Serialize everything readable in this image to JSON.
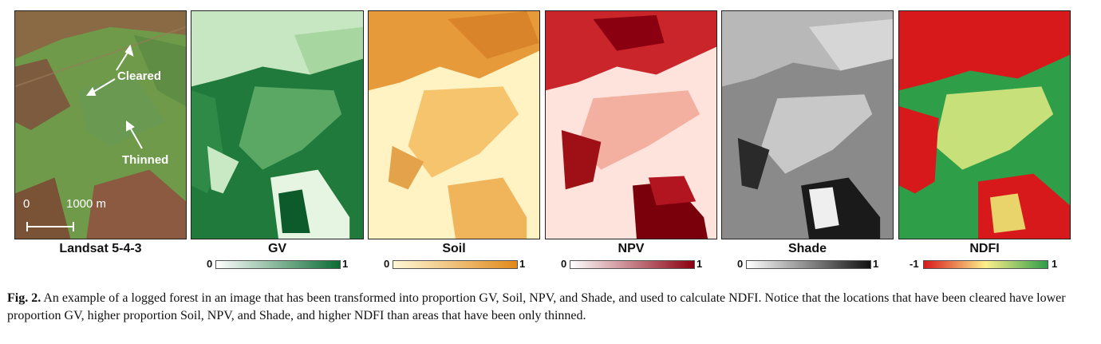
{
  "panels": [
    {
      "label": "Landsat 5-4-3",
      "ticks": []
    },
    {
      "label": "GV",
      "ticks": [
        "0",
        "1"
      ],
      "colors": [
        "#ffffff",
        "#0b6b32"
      ]
    },
    {
      "label": "Soil",
      "ticks": [
        "0",
        "1"
      ],
      "colors": [
        "#fff7d6",
        "#e08a1c"
      ]
    },
    {
      "label": "NPV",
      "ticks": [
        "0",
        "1"
      ],
      "colors": [
        "#ffffff",
        "#8b0010"
      ]
    },
    {
      "label": "Shade",
      "ticks": [
        "0",
        "1"
      ],
      "colors": [
        "#ffffff",
        "#111111"
      ]
    },
    {
      "label": "NDFI",
      "ticks": [
        "-1",
        "1"
      ],
      "colors": [
        "#d7191c",
        "#fdf08a",
        "#2e9e48"
      ]
    }
  ],
  "annotations": {
    "cleared": "Cleared",
    "thinned": "Thinned"
  },
  "scale_bar": {
    "zero": "0",
    "distance": "1000 m"
  },
  "caption": {
    "prefix": "Fig. 2.",
    "text": "An example of a logged forest in an image that has been transformed into proportion GV, Soil, NPV, and Shade, and used to calculate NDFI. Notice that the locations that have been cleared have lower proportion GV, higher proportion Soil, NPV, and Shade, and higher NDFI than areas that have been only thinned."
  }
}
